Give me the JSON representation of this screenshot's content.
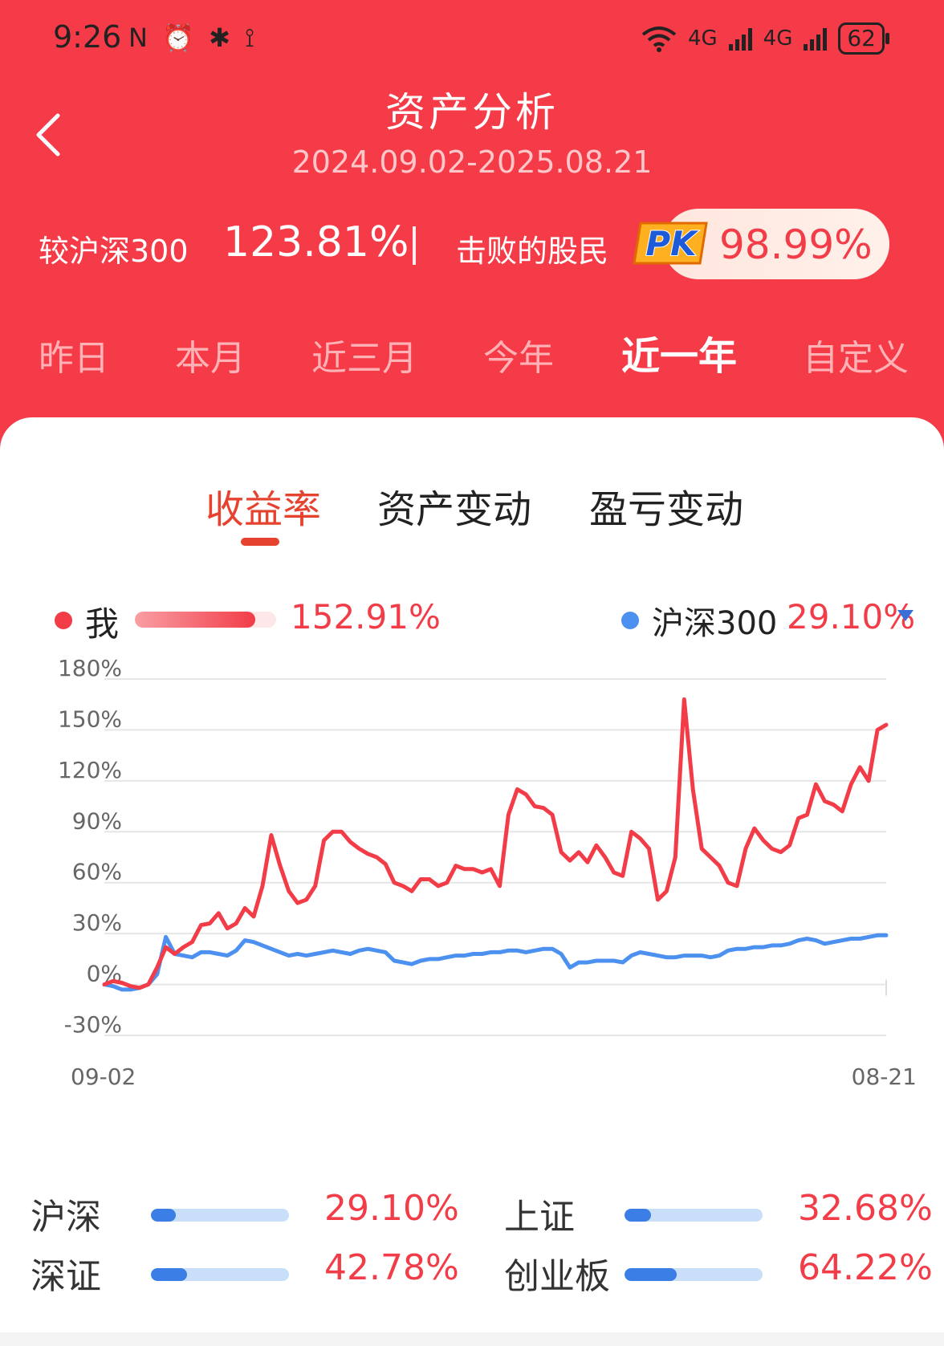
{
  "status_bar": {
    "time": "9:26",
    "left_icons": "N ⏰ ✱ ⟟",
    "network1": "4G",
    "network2": "4G",
    "battery": "62"
  },
  "header": {
    "title": "资产分析",
    "date_range": "2024.09.02-2025.08.21"
  },
  "metrics": {
    "vs_label": "较沪深300",
    "vs_value": "123.81%",
    "beat_label": "击败的股民",
    "pk_badge": "PK",
    "beat_value": "98.99%"
  },
  "period_tabs": [
    {
      "label": "昨日",
      "active": false
    },
    {
      "label": "本月",
      "active": false
    },
    {
      "label": "近三月",
      "active": false
    },
    {
      "label": "今年",
      "active": false
    },
    {
      "label": "近一年",
      "active": true
    },
    {
      "label": "自定义",
      "active": false
    }
  ],
  "content_tabs": [
    {
      "label": "收益率",
      "active": true
    },
    {
      "label": "资产变动",
      "active": false
    },
    {
      "label": "盈亏变动",
      "active": false
    }
  ],
  "legend": {
    "me_label": "我",
    "me_value": "152.91%",
    "me_bar_fraction": 0.85,
    "benchmark_label": "沪深300",
    "benchmark_value": "29.10%"
  },
  "colors": {
    "brand_red": "#f53b47",
    "my_line": "#f23c48",
    "benchmark_line": "#4c90f0",
    "tab_active": "#e5432f"
  },
  "chart_data": {
    "type": "line",
    "y_ticks": [
      "180%",
      "150%",
      "120%",
      "90%",
      "60%",
      "30%",
      "0%",
      "-30%"
    ],
    "ylim": [
      -30,
      180
    ],
    "x_start_label": "09-02",
    "x_end_label": "08-21",
    "grid": true,
    "series": [
      {
        "name": "我",
        "color": "#f23c48",
        "values": [
          0,
          2,
          1,
          -1,
          -2,
          0,
          10,
          22,
          18,
          22,
          25,
          35,
          36,
          42,
          33,
          36,
          45,
          40,
          58,
          88,
          70,
          55,
          48,
          50,
          58,
          85,
          90,
          90,
          84,
          80,
          77,
          75,
          71,
          60,
          58,
          55,
          62,
          62,
          58,
          60,
          70,
          68,
          68,
          66,
          68,
          58,
          100,
          115,
          112,
          105,
          104,
          100,
          78,
          73,
          78,
          72,
          82,
          75,
          66,
          64,
          90,
          86,
          80,
          50,
          55,
          75,
          168,
          115,
          80,
          75,
          70,
          60,
          58,
          80,
          92,
          85,
          80,
          78,
          82,
          98,
          100,
          118,
          108,
          106,
          102,
          118,
          128,
          120,
          150,
          153
        ]
      },
      {
        "name": "沪深300",
        "color": "#4c90f0",
        "values": [
          0,
          -1,
          -3,
          -3,
          -2,
          0,
          6,
          28,
          18,
          17,
          16,
          19,
          19,
          18,
          17,
          20,
          26,
          25,
          23,
          21,
          19,
          17,
          18,
          17,
          18,
          19,
          20,
          19,
          18,
          20,
          21,
          20,
          19,
          14,
          13,
          12,
          14,
          15,
          15,
          16,
          17,
          17,
          18,
          18,
          19,
          19,
          20,
          20,
          19,
          20,
          21,
          21,
          18,
          10,
          13,
          13,
          14,
          14,
          14,
          13,
          17,
          19,
          18,
          17,
          16,
          16,
          17,
          17,
          17,
          16,
          17,
          20,
          21,
          21,
          22,
          22,
          23,
          23,
          24,
          26,
          27,
          26,
          24,
          25,
          26,
          27,
          27,
          28,
          29,
          29
        ]
      }
    ]
  },
  "index_compare": [
    {
      "name": "沪深",
      "value": "29.10%",
      "fraction": 0.18
    },
    {
      "name": "上证",
      "value": "32.68%",
      "fraction": 0.19
    },
    {
      "name": "深证",
      "value": "42.78%",
      "fraction": 0.26
    },
    {
      "name": "创业板",
      "value": "64.22%",
      "fraction": 0.38
    }
  ]
}
